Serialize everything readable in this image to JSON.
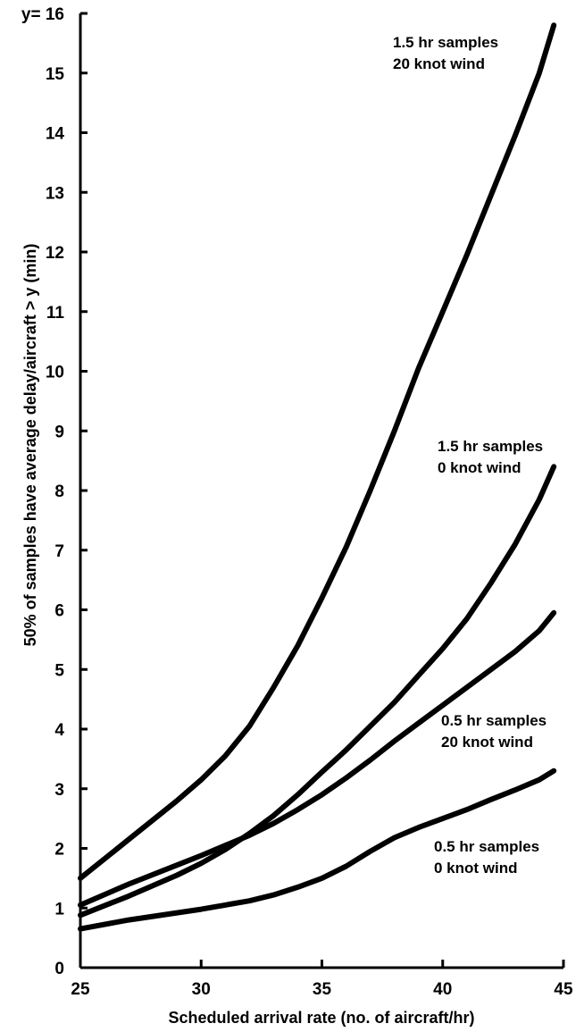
{
  "chart_data": {
    "type": "line",
    "xlabel": "Scheduled arrival rate (no. of aircraft/hr)",
    "ylabel": "50% of samples have average delay/aircraft > y (min)",
    "xlim": [
      25,
      45
    ],
    "ylim": [
      0,
      16
    ],
    "x_ticks": [
      "25",
      "30",
      "35",
      "40",
      "45"
    ],
    "y_ticks": [
      "0",
      "1",
      "2",
      "3",
      "4",
      "5",
      "6",
      "7",
      "8",
      "9",
      "10",
      "11",
      "12",
      "13",
      "14",
      "15",
      "y= 16"
    ],
    "grid": false,
    "legend": "none",
    "series": [
      {
        "label_lines": [
          "1.5 hr samples",
          "20 knot wind"
        ],
        "x": [
          25,
          27,
          29,
          30,
          31,
          32,
          33,
          34,
          35,
          36,
          37,
          38,
          39,
          40,
          41,
          42,
          43,
          44,
          44.6
        ],
        "y": [
          1.5,
          2.15,
          2.8,
          3.15,
          3.55,
          4.05,
          4.7,
          5.4,
          6.2,
          7.05,
          8.0,
          9.0,
          10.05,
          11.0,
          11.95,
          12.95,
          13.95,
          15.0,
          15.8
        ]
      },
      {
        "label_lines": [
          "1.5 hr samples",
          "0 knot wind"
        ],
        "x": [
          25,
          27,
          29,
          30,
          31,
          32,
          33,
          34,
          35,
          36,
          37,
          38,
          39,
          40,
          41,
          42,
          43,
          44,
          44.6
        ],
        "y": [
          0.88,
          1.2,
          1.55,
          1.75,
          1.98,
          2.25,
          2.55,
          2.9,
          3.28,
          3.65,
          4.05,
          4.45,
          4.9,
          5.35,
          5.85,
          6.45,
          7.1,
          7.85,
          8.4
        ]
      },
      {
        "label_lines": [
          "0.5 hr samples",
          "20 knot wind"
        ],
        "x": [
          25,
          27,
          29,
          30,
          31,
          32,
          33,
          34,
          35,
          36,
          37,
          38,
          39,
          40,
          41,
          42,
          43,
          44,
          44.6
        ],
        "y": [
          1.05,
          1.4,
          1.72,
          1.88,
          2.05,
          2.22,
          2.42,
          2.65,
          2.9,
          3.18,
          3.48,
          3.8,
          4.1,
          4.4,
          4.7,
          5.0,
          5.3,
          5.65,
          5.95
        ]
      },
      {
        "label_lines": [
          "0.5 hr samples",
          "0 knot wind"
        ],
        "x": [
          25,
          27,
          29,
          30,
          31,
          32,
          33,
          34,
          35,
          36,
          37,
          38,
          39,
          40,
          41,
          42,
          43,
          44,
          44.6
        ],
        "y": [
          0.65,
          0.8,
          0.92,
          0.98,
          1.05,
          1.12,
          1.22,
          1.35,
          1.5,
          1.7,
          1.95,
          2.18,
          2.35,
          2.5,
          2.65,
          2.82,
          2.98,
          3.15,
          3.3
        ]
      }
    ]
  }
}
